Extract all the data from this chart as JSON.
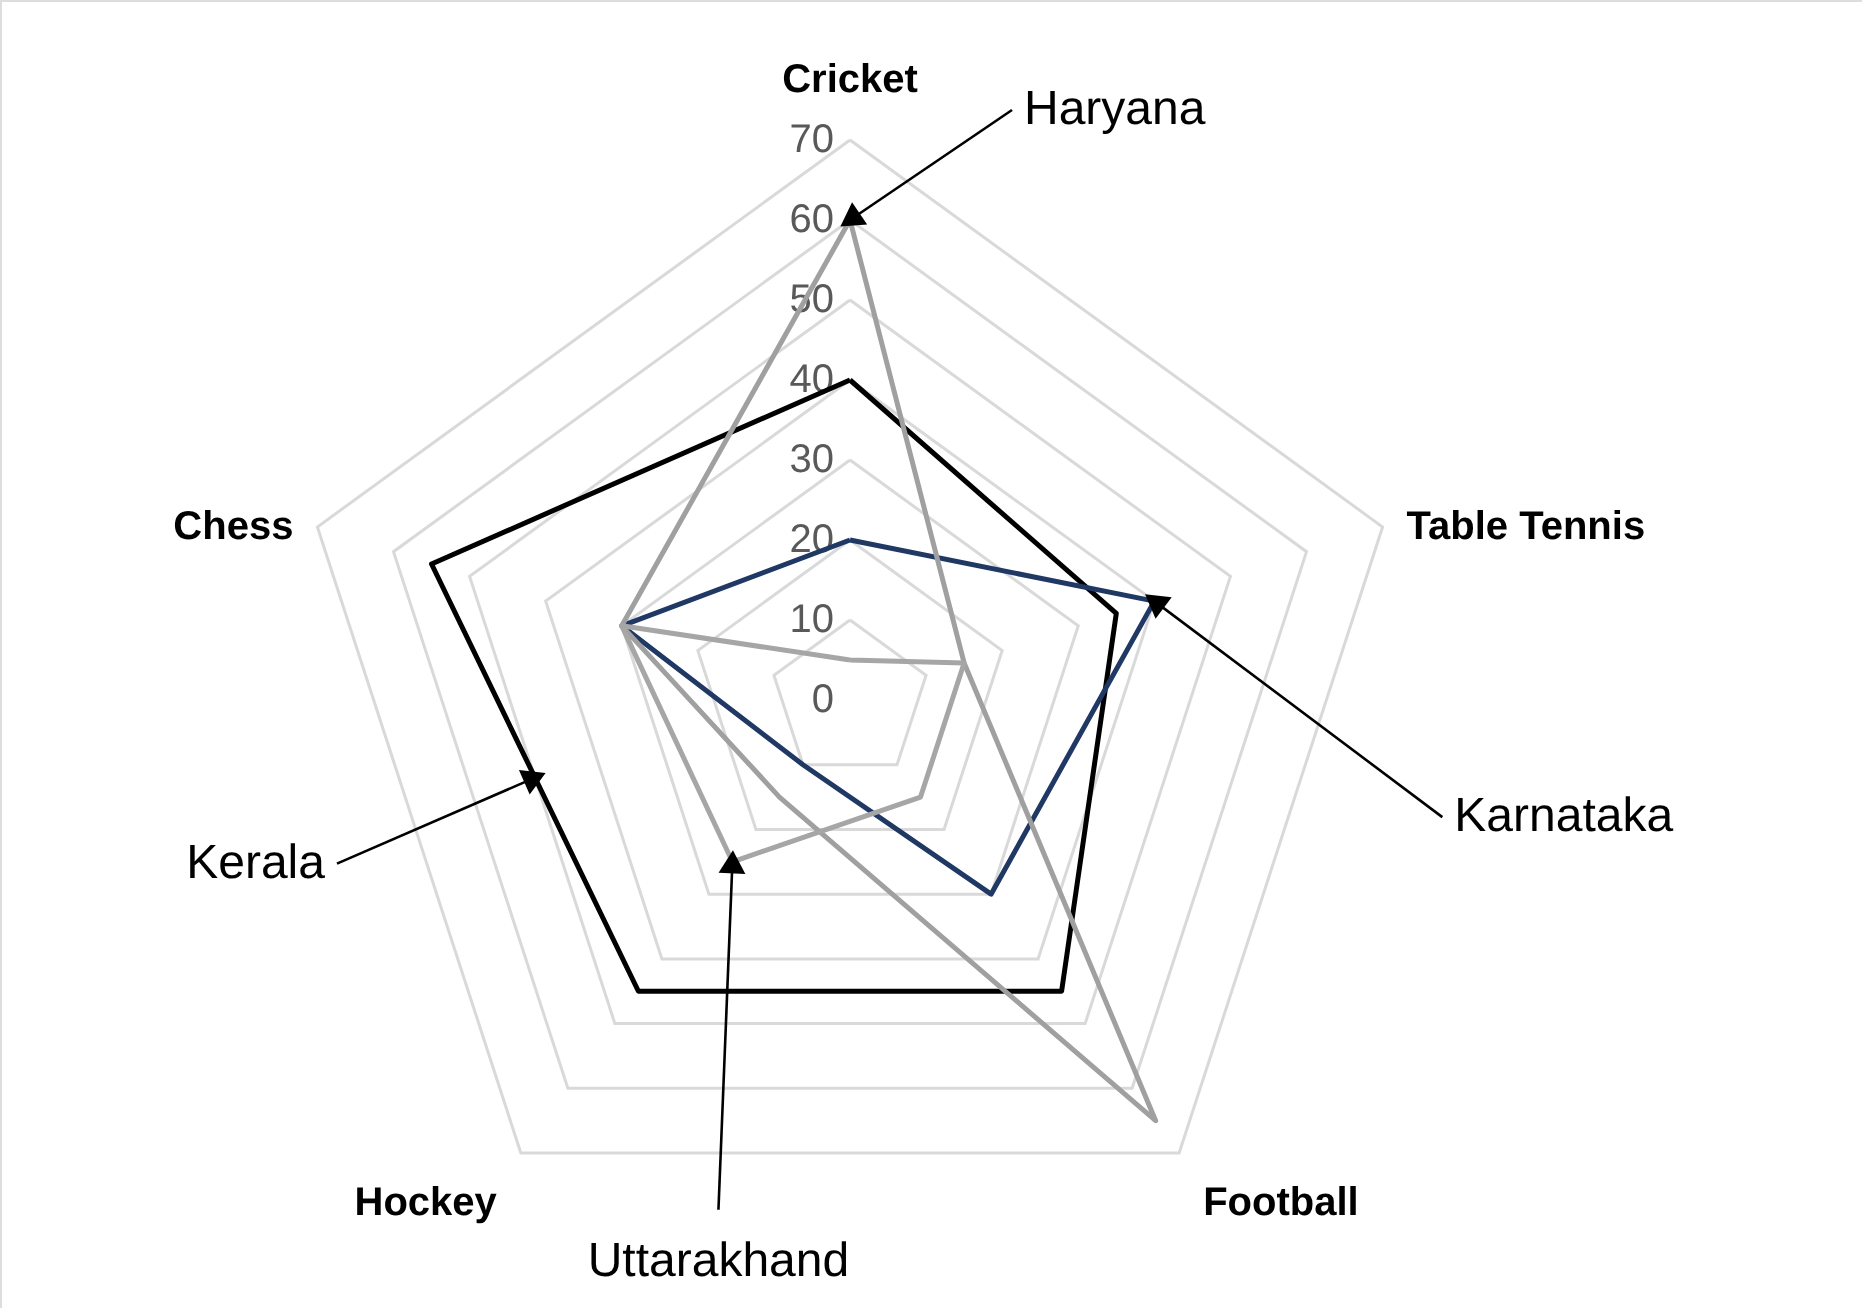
{
  "chart_data": {
    "type": "radar",
    "categories": [
      "Cricket",
      "Table Tennis",
      "Football",
      "Hockey",
      "Chess"
    ],
    "series": [
      {
        "name": "Kerala",
        "color": "#000000",
        "values": [
          40,
          35,
          45,
          45,
          55
        ]
      },
      {
        "name": "Karnataka",
        "color": "#203864",
        "values": [
          20,
          40,
          30,
          10,
          30
        ]
      },
      {
        "name": "Haryana",
        "color": "#a0a0a0",
        "values": [
          60,
          15,
          65,
          15,
          30
        ]
      },
      {
        "name": "Uttarakhand",
        "color": "#a6a6a6",
        "values": [
          5,
          15,
          15,
          25,
          30
        ]
      }
    ],
    "ylim": [
      0,
      70
    ],
    "yticks": [
      0,
      10,
      20,
      30,
      40,
      50,
      60,
      70
    ],
    "grid": true,
    "legend": false,
    "marker": "none",
    "line_style": "solid"
  }
}
